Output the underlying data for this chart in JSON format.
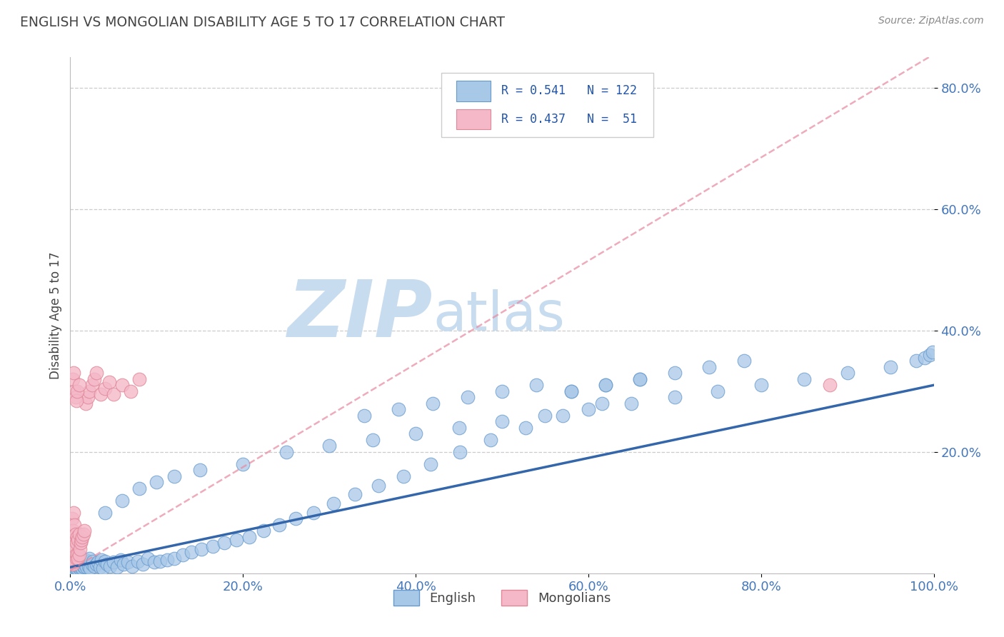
{
  "title": "ENGLISH VS MONGOLIAN DISABILITY AGE 5 TO 17 CORRELATION CHART",
  "source": "Source: ZipAtlas.com",
  "ylabel": "Disability Age 5 to 17",
  "xlim": [
    0,
    1.0
  ],
  "ylim": [
    0,
    0.85
  ],
  "xticks": [
    0.0,
    0.2,
    0.4,
    0.6,
    0.8,
    1.0
  ],
  "xtick_labels": [
    "0.0%",
    "20.0%",
    "40.0%",
    "60.0%",
    "80.0%",
    "100.0%"
  ],
  "ytick_vals": [
    0.2,
    0.4,
    0.6,
    0.8
  ],
  "ytick_labels": [
    "20.0%",
    "40.0%",
    "60.0%",
    "80.0%"
  ],
  "legend_r1": "R = 0.541",
  "legend_n1": "N = 122",
  "legend_r2": "R = 0.437",
  "legend_n2": "N =  51",
  "blue_color": "#A8C8E8",
  "blue_edge": "#6699CC",
  "pink_color": "#F4B8C8",
  "pink_edge": "#E08898",
  "reg_blue": "#3366AA",
  "reg_pink": "#E888A0",
  "watermark_zip": "ZIP",
  "watermark_atlas": "atlas",
  "watermark_color": "#C8DCF0",
  "title_color": "#444444",
  "source_color": "#888888",
  "axis_label_color": "#444444",
  "tick_color": "#4477BB",
  "grid_color": "#CCCCCC",
  "eng_slope": 0.3,
  "eng_intercept": 0.01,
  "mong_slope": 0.85,
  "mong_intercept": 0.005,
  "english_x": [
    0.001,
    0.002,
    0.002,
    0.003,
    0.003,
    0.004,
    0.004,
    0.005,
    0.005,
    0.006,
    0.006,
    0.007,
    0.007,
    0.008,
    0.008,
    0.009,
    0.009,
    0.01,
    0.01,
    0.011,
    0.011,
    0.012,
    0.012,
    0.013,
    0.013,
    0.014,
    0.015,
    0.015,
    0.016,
    0.017,
    0.018,
    0.019,
    0.02,
    0.021,
    0.022,
    0.023,
    0.025,
    0.026,
    0.028,
    0.03,
    0.032,
    0.034,
    0.036,
    0.038,
    0.04,
    0.043,
    0.046,
    0.05,
    0.054,
    0.058,
    0.062,
    0.067,
    0.072,
    0.078,
    0.084,
    0.09,
    0.097,
    0.104,
    0.112,
    0.12,
    0.13,
    0.14,
    0.152,
    0.165,
    0.178,
    0.192,
    0.207,
    0.224,
    0.242,
    0.261,
    0.282,
    0.305,
    0.33,
    0.357,
    0.386,
    0.417,
    0.451,
    0.487,
    0.527,
    0.57,
    0.616,
    0.04,
    0.06,
    0.08,
    0.1,
    0.12,
    0.15,
    0.2,
    0.25,
    0.3,
    0.35,
    0.4,
    0.45,
    0.5,
    0.55,
    0.6,
    0.65,
    0.7,
    0.75,
    0.8,
    0.85,
    0.9,
    0.95,
    0.98,
    0.99,
    0.995,
    0.999,
    0.58,
    0.62,
    0.66,
    0.34,
    0.38,
    0.42,
    0.46,
    0.5,
    0.54,
    0.58,
    0.62,
    0.66,
    0.7,
    0.74,
    0.78
  ],
  "english_y": [
    0.01,
    0.008,
    0.012,
    0.01,
    0.015,
    0.008,
    0.018,
    0.012,
    0.02,
    0.008,
    0.015,
    0.01,
    0.018,
    0.008,
    0.022,
    0.012,
    0.025,
    0.01,
    0.028,
    0.008,
    0.015,
    0.01,
    0.02,
    0.012,
    0.025,
    0.008,
    0.012,
    0.018,
    0.01,
    0.015,
    0.022,
    0.01,
    0.018,
    0.012,
    0.025,
    0.008,
    0.015,
    0.02,
    0.012,
    0.015,
    0.018,
    0.01,
    0.022,
    0.008,
    0.02,
    0.015,
    0.012,
    0.018,
    0.01,
    0.022,
    0.015,
    0.018,
    0.012,
    0.02,
    0.015,
    0.025,
    0.018,
    0.02,
    0.022,
    0.025,
    0.03,
    0.035,
    0.04,
    0.045,
    0.05,
    0.055,
    0.06,
    0.07,
    0.08,
    0.09,
    0.1,
    0.115,
    0.13,
    0.145,
    0.16,
    0.18,
    0.2,
    0.22,
    0.24,
    0.26,
    0.28,
    0.1,
    0.12,
    0.14,
    0.15,
    0.16,
    0.17,
    0.18,
    0.2,
    0.21,
    0.22,
    0.23,
    0.24,
    0.25,
    0.26,
    0.27,
    0.28,
    0.29,
    0.3,
    0.31,
    0.32,
    0.33,
    0.34,
    0.35,
    0.355,
    0.36,
    0.365,
    0.3,
    0.31,
    0.32,
    0.26,
    0.27,
    0.28,
    0.29,
    0.3,
    0.31,
    0.3,
    0.31,
    0.32,
    0.33,
    0.34,
    0.35
  ],
  "mong_x": [
    0.001,
    0.001,
    0.002,
    0.002,
    0.002,
    0.003,
    0.003,
    0.003,
    0.004,
    0.004,
    0.004,
    0.005,
    0.005,
    0.005,
    0.006,
    0.006,
    0.007,
    0.007,
    0.008,
    0.008,
    0.009,
    0.009,
    0.01,
    0.01,
    0.011,
    0.012,
    0.013,
    0.014,
    0.015,
    0.016,
    0.018,
    0.02,
    0.022,
    0.025,
    0.028,
    0.03,
    0.035,
    0.04,
    0.045,
    0.05,
    0.06,
    0.07,
    0.08,
    0.003,
    0.004,
    0.005,
    0.006,
    0.007,
    0.008,
    0.01,
    0.88
  ],
  "mong_y": [
    0.03,
    0.06,
    0.02,
    0.045,
    0.09,
    0.015,
    0.035,
    0.07,
    0.025,
    0.055,
    0.1,
    0.02,
    0.04,
    0.08,
    0.03,
    0.065,
    0.025,
    0.05,
    0.03,
    0.06,
    0.025,
    0.055,
    0.03,
    0.065,
    0.04,
    0.05,
    0.055,
    0.06,
    0.065,
    0.07,
    0.28,
    0.29,
    0.3,
    0.31,
    0.32,
    0.33,
    0.295,
    0.305,
    0.315,
    0.295,
    0.31,
    0.3,
    0.32,
    0.32,
    0.33,
    0.3,
    0.29,
    0.285,
    0.3,
    0.31,
    0.31
  ]
}
